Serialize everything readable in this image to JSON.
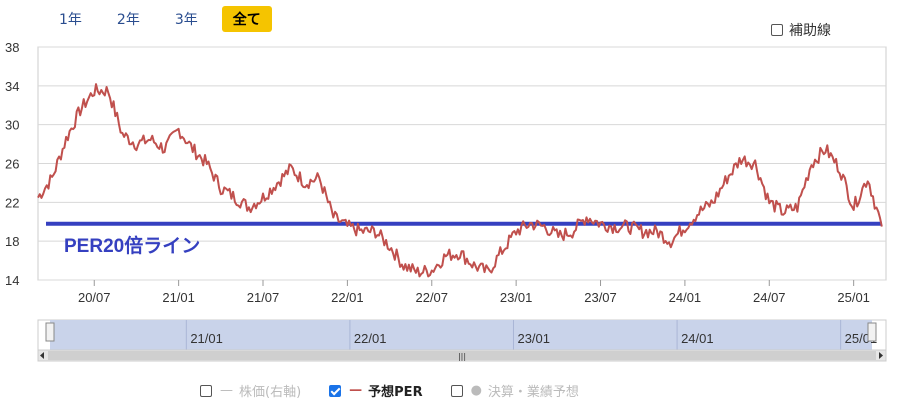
{
  "tabs": [
    {
      "label": "1年",
      "active": false
    },
    {
      "label": "2年",
      "active": false
    },
    {
      "label": "3年",
      "active": false
    },
    {
      "label": "全て",
      "active": true
    }
  ],
  "aux_line": {
    "label": "補助線",
    "checked": false
  },
  "annotation": {
    "label": "PER20倍ライン",
    "color": "#3540c0"
  },
  "colors": {
    "line": "#c0504d",
    "ref_line": "#3540c0",
    "navigator": "#c9d3ea"
  },
  "navigator": {
    "labels": [
      "21/01",
      "22/01",
      "23/01",
      "24/01",
      "25/01"
    ],
    "grip_icon": "grip-icon",
    "left_arrow_icon": "arrow-left-icon",
    "right_arrow_icon": "arrow-right-icon"
  },
  "legend": [
    {
      "label": "株価(右軸)",
      "checked": false,
      "marker": "—"
    },
    {
      "label": "予想PER",
      "checked": true,
      "marker": "—"
    },
    {
      "label": "決算・業績予想",
      "checked": false,
      "marker": "●"
    }
  ],
  "chart_data": {
    "type": "line",
    "ylim": [
      14,
      38
    ],
    "y_ticks": [
      "38",
      "34",
      "30",
      "26",
      "22",
      "18",
      "14"
    ],
    "x_ticks": [
      "20/07",
      "21/01",
      "21/07",
      "22/01",
      "22/07",
      "23/01",
      "23/07",
      "24/01",
      "24/07",
      "25/01"
    ],
    "reference_line": {
      "value": 19.8,
      "label": "PER20倍ライン"
    },
    "series": [
      {
        "name": "予想PER",
        "x": [
          "20/03",
          "20/04",
          "20/05",
          "20/06",
          "20/07",
          "20/08",
          "20/09",
          "20/10",
          "20/11",
          "20/12",
          "21/01",
          "21/02",
          "21/03",
          "21/04",
          "21/05",
          "21/06",
          "21/07",
          "21/08",
          "21/09",
          "21/10",
          "21/11",
          "21/12",
          "22/01",
          "22/02",
          "22/03",
          "22/04",
          "22/05",
          "22/06",
          "22/07",
          "22/08",
          "22/09",
          "22/10",
          "22/11",
          "22/12",
          "23/01",
          "23/02",
          "23/03",
          "23/04",
          "23/05",
          "23/06",
          "23/07",
          "23/08",
          "23/09",
          "23/10",
          "23/11",
          "23/12",
          "24/01",
          "24/02",
          "24/03",
          "24/04",
          "24/05",
          "24/06",
          "24/07",
          "24/08",
          "24/09",
          "24/10",
          "24/11",
          "24/12",
          "25/01",
          "25/02",
          "25/03"
        ],
        "values": [
          22.5,
          24.5,
          28.5,
          31.5,
          33.5,
          33.5,
          29.0,
          28.0,
          28.5,
          27.5,
          29.5,
          27.5,
          26.0,
          23.5,
          22.5,
          21.5,
          22.5,
          24.0,
          25.5,
          24.0,
          24.5,
          20.5,
          19.5,
          19.0,
          19.0,
          17.5,
          15.5,
          14.8,
          15.0,
          16.5,
          16.8,
          15.5,
          14.8,
          17.0,
          19.0,
          19.8,
          19.5,
          18.5,
          19.0,
          20.5,
          19.8,
          19.5,
          19.5,
          19.0,
          19.0,
          18.0,
          19.5,
          21.0,
          22.0,
          24.5,
          26.5,
          26.0,
          22.0,
          21.0,
          21.5,
          26.0,
          27.5,
          25.5,
          21.5,
          24.5,
          19.5
        ]
      }
    ]
  }
}
